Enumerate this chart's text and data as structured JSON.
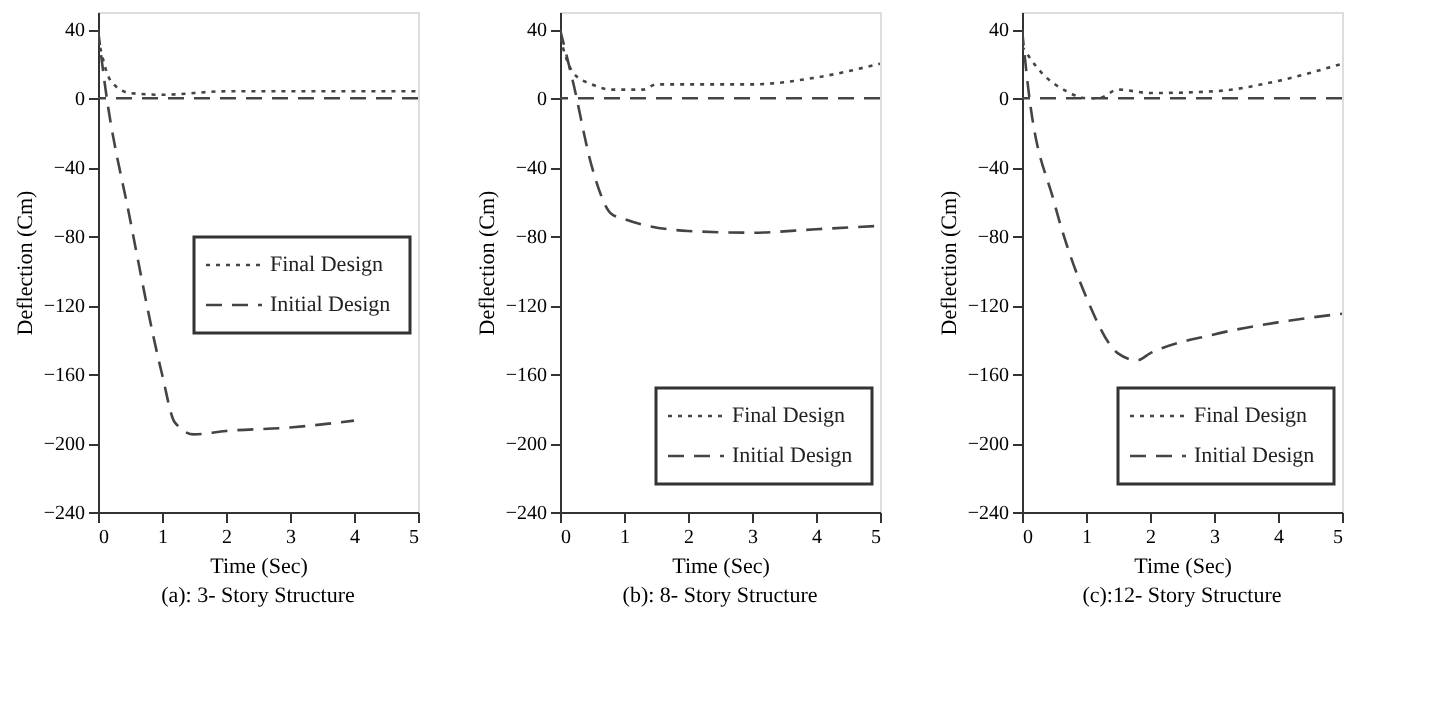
{
  "chart_data": [
    {
      "type": "line",
      "title": "(a): 3- Story Structure",
      "xlabel": "Time (Sec)",
      "ylabel": "Deflection (Cm)",
      "xlim": [
        0,
        5
      ],
      "xticks": [
        0,
        1,
        2,
        3,
        4,
        5
      ],
      "ylim": [
        -240,
        50
      ],
      "yticks": [
        -240,
        -200,
        -160,
        -120,
        -80,
        -40,
        0,
        40
      ],
      "grid": false,
      "legend": "right",
      "series": [
        {
          "name": "Final Design",
          "color": "#444444",
          "line_style": "dotted",
          "x": [
            0,
            0.2,
            0.5,
            1,
            2,
            3,
            4,
            5
          ],
          "values": [
            35,
            10,
            3,
            2,
            4,
            4,
            4,
            4
          ]
        },
        {
          "name": "Initial Design",
          "color": "#444444",
          "line_style": "dashed",
          "x": [
            0,
            0.1,
            0.5,
            1,
            1.2,
            1.5,
            2,
            3,
            4
          ],
          "values": [
            40,
            10,
            -70,
            -160,
            -188,
            -195,
            -193,
            -191,
            -187
          ]
        }
      ],
      "ref_lines": [
        {
          "axis": "y",
          "value": 0,
          "color": "#444444",
          "line_style": "dashed"
        }
      ]
    },
    {
      "type": "line",
      "title": "(b): 8- Story Structure",
      "xlabel": "Time (Sec)",
      "ylabel": "Deflection (Cm)",
      "xlim": [
        0,
        5
      ],
      "xticks": [
        0,
        1,
        2,
        3,
        4,
        5
      ],
      "ylim": [
        -240,
        50
      ],
      "yticks": [
        -240,
        -200,
        -160,
        -120,
        -80,
        -40,
        0,
        40
      ],
      "grid": false,
      "legend": "bottom right",
      "series": [
        {
          "name": "Final Design",
          "color": "#444444",
          "line_style": "dotted",
          "x": [
            0,
            0.2,
            0.5,
            0.8,
            1.3,
            1.5,
            2,
            3,
            4,
            5
          ],
          "values": [
            35,
            15,
            8,
            5,
            5,
            8,
            8,
            8,
            12,
            20
          ]
        },
        {
          "name": "Initial Design",
          "color": "#444444",
          "line_style": "dashed",
          "x": [
            0,
            0.2,
            0.5,
            0.8,
            1,
            2,
            3,
            4,
            5
          ],
          "values": [
            40,
            10,
            -40,
            -67,
            -70,
            -77,
            -78,
            -76,
            -74
          ]
        }
      ],
      "ref_lines": [
        {
          "axis": "y",
          "value": 0,
          "color": "#444444",
          "line_style": "dashed"
        }
      ]
    },
    {
      "type": "line",
      "title": "(c):12- Story Structure",
      "xlabel": "Time (Sec)",
      "ylabel": "Deflection (Cm)",
      "xlim": [
        0,
        5
      ],
      "xticks": [
        0,
        1,
        2,
        3,
        4,
        5
      ],
      "ylim": [
        -240,
        50
      ],
      "yticks": [
        -240,
        -200,
        -160,
        -120,
        -80,
        -40,
        0,
        40
      ],
      "grid": false,
      "legend": "bottom right",
      "series": [
        {
          "name": "Final Design",
          "color": "#444444",
          "line_style": "dotted",
          "x": [
            0,
            0.3,
            0.7,
            1,
            1.2,
            1.5,
            2,
            3,
            4,
            5
          ],
          "values": [
            30,
            15,
            4,
            0,
            0,
            5,
            3,
            4,
            10,
            20
          ]
        },
        {
          "name": "Initial Design",
          "color": "#444444",
          "line_style": "dashed",
          "x": [
            0,
            0.1,
            0.5,
            1,
            1.5,
            1.8,
            2,
            3,
            4,
            5
          ],
          "values": [
            40,
            5,
            -60,
            -115,
            -148,
            -152,
            -148,
            -137,
            -130,
            -125
          ]
        }
      ],
      "ref_lines": [
        {
          "axis": "y",
          "value": 0,
          "color": "#444444",
          "line_style": "dashed"
        }
      ]
    }
  ]
}
